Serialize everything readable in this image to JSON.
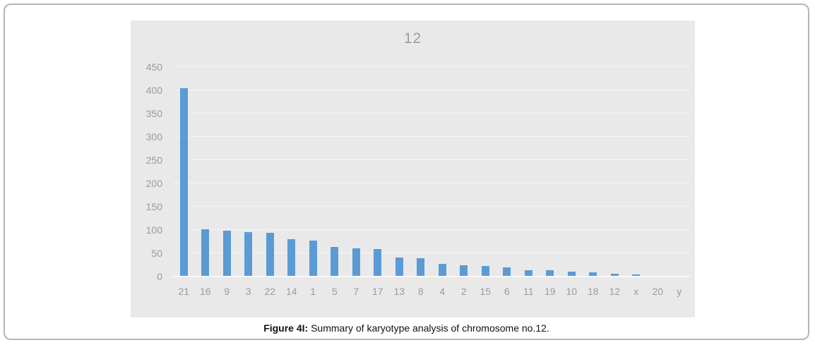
{
  "figure": {
    "caption_label": "Figure 4I:",
    "caption_text": " Summary of karyotype analysis of chromosome no.12."
  },
  "chart_data": {
    "type": "bar",
    "title": "12",
    "categories": [
      "21",
      "16",
      "9",
      "3",
      "22",
      "14",
      "1",
      "5",
      "7",
      "17",
      "13",
      "8",
      "4",
      "2",
      "15",
      "6",
      "11",
      "19",
      "10",
      "18",
      "12",
      "x",
      "20",
      "y"
    ],
    "values": [
      404,
      102,
      99,
      95,
      94,
      81,
      77,
      63,
      61,
      59,
      41,
      39,
      28,
      25,
      23,
      20,
      14,
      14,
      11,
      9,
      6,
      4,
      0,
      0
    ],
    "xlabel": "",
    "ylabel": "",
    "ylim": [
      0,
      450
    ],
    "yticks": [
      0,
      50,
      100,
      150,
      200,
      250,
      300,
      350,
      400,
      450
    ],
    "grid": true,
    "legend": "none",
    "bar_color": "#5b9bd5",
    "plot_bg": "#e9e9e9",
    "axis_label_color": "#9b9b9b",
    "title_color": "#9e9e9e"
  }
}
